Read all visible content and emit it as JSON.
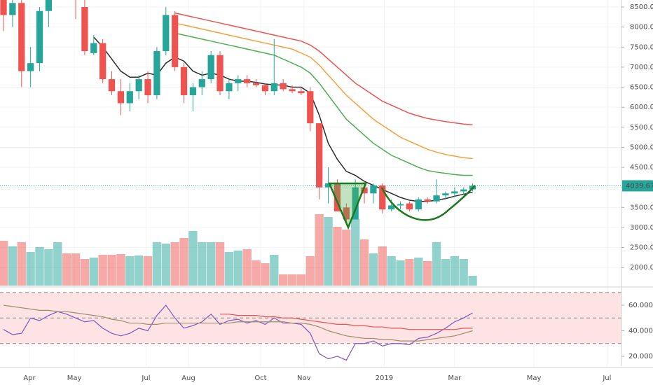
{
  "chart_data": [
    {
      "type": "candlestick",
      "xlim": [
        -0.39,
        68.5
      ],
      "xticks": [
        {
          "value": 2.87,
          "label": "Apr"
        },
        {
          "value": 7.85,
          "label": "May"
        },
        {
          "value": 15.8,
          "label": "Jul"
        },
        {
          "value": 20.5,
          "label": "Aug"
        },
        {
          "value": 28.5,
          "label": "Oct"
        },
        {
          "value": 33.3,
          "label": "Nov"
        },
        {
          "value": 42.2,
          "label": "2019"
        },
        {
          "value": 50.0,
          "label": "Mar"
        },
        {
          "value": 58.8,
          "label": "May"
        },
        {
          "value": 66.9,
          "label": "Jul"
        }
      ],
      "ylim": [
        1550,
        8675
      ],
      "yticks": [
        {
          "value": 2000,
          "label": "2000.00"
        },
        {
          "value": 2500,
          "label": "2500.00"
        },
        {
          "value": 3000,
          "label": "3000.00"
        },
        {
          "value": 3500,
          "label": "3500.00"
        },
        {
          "value": 4000,
          "label": "4000.00"
        },
        {
          "value": 4500,
          "label": "4500.00"
        },
        {
          "value": 5000,
          "label": "5000.00"
        },
        {
          "value": 5500,
          "label": "5500.00"
        },
        {
          "value": 6000,
          "label": "6000.00"
        },
        {
          "value": 6500,
          "label": "6500.00"
        },
        {
          "value": 7000,
          "label": "7000.00"
        },
        {
          "value": 7500,
          "label": "7500.00"
        },
        {
          "value": 8000,
          "label": "8000.00"
        },
        {
          "value": 8500,
          "label": "8500.00"
        }
      ],
      "grid": true,
      "up_color": "#26a69a",
      "down_color": "#ef5350",
      "last_price": 4039.67,
      "open": [
        8800,
        8300,
        8600,
        6900,
        7100,
        8400,
        9200,
        9500,
        9100,
        8500,
        7350,
        7600,
        6700,
        6400,
        6100,
        6400,
        6700,
        6300,
        7400,
        8300,
        7000,
        6300,
        6500,
        6700,
        7300,
        6400,
        6600,
        6700,
        6600,
        6550,
        6400,
        6600,
        6450,
        6400,
        6400,
        5600,
        4000,
        4100,
        3500,
        3200,
        4000,
        3850,
        4050,
        3450,
        3550,
        3600,
        3450,
        3700,
        3650,
        3800,
        3850,
        3900,
        3950
      ],
      "high": [
        9100,
        8700,
        8800,
        7500,
        8500,
        9300,
        9800,
        9900,
        9400,
        8700,
        7800,
        7700,
        6900,
        6700,
        6600,
        6800,
        6900,
        7500,
        8500,
        8400,
        7100,
        6600,
        6900,
        7400,
        7400,
        6700,
        6800,
        6800,
        6700,
        6600,
        7700,
        6700,
        6550,
        6500,
        6500,
        5600,
        4500,
        4200,
        3600,
        4200,
        4150,
        4100,
        4100,
        3700,
        3650,
        3650,
        3750,
        3750,
        4200,
        3900,
        4000,
        4000,
        4100
      ],
      "low": [
        7900,
        8000,
        6500,
        6500,
        6900,
        8000,
        9000,
        8800,
        8200,
        7300,
        7300,
        6600,
        6300,
        5800,
        5900,
        6200,
        6100,
        6200,
        7300,
        6900,
        6100,
        5900,
        6300,
        6600,
        6300,
        6200,
        6400,
        6500,
        6500,
        6300,
        6300,
        6400,
        6350,
        6300,
        5400,
        3700,
        3600,
        3400,
        3150,
        3200,
        3600,
        3600,
        3350,
        3400,
        3450,
        3400,
        3400,
        3600,
        3600,
        3700,
        3750,
        3800,
        3900
      ],
      "close": [
        8300,
        8600,
        6900,
        7100,
        8400,
        9200,
        9500,
        9100,
        8700,
        7400,
        7600,
        6700,
        6400,
        6100,
        6400,
        6700,
        6300,
        7400,
        8300,
        7000,
        6300,
        6500,
        6700,
        7300,
        6400,
        6600,
        6700,
        6600,
        6550,
        6400,
        6600,
        6450,
        6400,
        6350,
        5600,
        4000,
        4100,
        3400,
        3200,
        4000,
        3850,
        4050,
        3450,
        3550,
        3580,
        3450,
        3700,
        3650,
        3800,
        3850,
        3900,
        3950,
        4039.67
      ],
      "volume": [
        64,
        56,
        62,
        48,
        55,
        52,
        62,
        46,
        46,
        38,
        40,
        44,
        44,
        45,
        42,
        43,
        42,
        62,
        60,
        62,
        68,
        78,
        62,
        62,
        62,
        48,
        50,
        52,
        36,
        32,
        44,
        16,
        16,
        16,
        42,
        102,
        98,
        84,
        80,
        95,
        66,
        46,
        56,
        42,
        36,
        38,
        40,
        35,
        62,
        38,
        42,
        38,
        14
      ],
      "moving_averages": [
        {
          "color": "#ef5350",
          "values": [
            null,
            null,
            null,
            null,
            null,
            null,
            null,
            null,
            null,
            null,
            null,
            null,
            null,
            null,
            null,
            null,
            null,
            null,
            null,
            8350,
            8300,
            8250,
            8200,
            8150,
            8100,
            8050,
            8000,
            7950,
            7900,
            7850,
            7800,
            7750,
            7700,
            7650,
            7550,
            7400,
            7200,
            7000,
            6800,
            6600,
            6450,
            6300,
            6150,
            6050,
            5950,
            5850,
            5780,
            5720,
            5680,
            5640,
            5610,
            5580,
            5560
          ]
        },
        {
          "color": "#f7a03c",
          "values": [
            null,
            null,
            null,
            null,
            null,
            null,
            null,
            null,
            null,
            null,
            null,
            null,
            null,
            null,
            null,
            null,
            null,
            null,
            null,
            8100,
            8050,
            8000,
            7950,
            7900,
            7850,
            7800,
            7750,
            7700,
            7650,
            7600,
            7550,
            7500,
            7450,
            7350,
            7250,
            7050,
            6800,
            6550,
            6300,
            6100,
            5900,
            5700,
            5550,
            5400,
            5250,
            5150,
            5050,
            4950,
            4880,
            4820,
            4780,
            4740,
            4720
          ]
        },
        {
          "color": "#4caf50",
          "values": [
            null,
            null,
            null,
            null,
            null,
            null,
            null,
            null,
            null,
            null,
            null,
            null,
            null,
            null,
            null,
            null,
            null,
            null,
            null,
            7850,
            7800,
            7750,
            7700,
            7650,
            7600,
            7550,
            7500,
            7450,
            7400,
            7350,
            7300,
            7200,
            7100,
            7000,
            6850,
            6600,
            6300,
            6000,
            5700,
            5500,
            5300,
            5100,
            4950,
            4800,
            4700,
            4600,
            4500,
            4420,
            4380,
            4350,
            4320,
            4300,
            4300
          ]
        },
        {
          "color": "#2b2b2b",
          "values": [
            null,
            null,
            null,
            null,
            null,
            null,
            null,
            null,
            null,
            null,
            7750,
            7500,
            7200,
            6900,
            6750,
            6750,
            6850,
            6800,
            7100,
            7250,
            7150,
            6900,
            6800,
            6850,
            6800,
            6700,
            6650,
            6650,
            6620,
            6580,
            6560,
            6550,
            6500,
            6500,
            6350,
            5800,
            5100,
            4700,
            4400,
            4300,
            4150,
            4050,
            3950,
            3850,
            3750,
            3680,
            3650,
            3650,
            3680,
            3720,
            3780,
            3830,
            3880
          ]
        }
      ]
    },
    {
      "type": "line",
      "ylim": [
        12.3,
        73.2
      ],
      "yticks": [
        {
          "value": 20,
          "label": "20.0000"
        },
        {
          "value": 40,
          "label": "40.0000"
        },
        {
          "value": 60,
          "label": "60.0000"
        }
      ],
      "levels": [
        70,
        50,
        30
      ],
      "band_color": "#fde3e3",
      "series": [
        {
          "color": "#7e57c2",
          "values": [
            41,
            37,
            38,
            50,
            48,
            52,
            55,
            53,
            50,
            47,
            48,
            42,
            38,
            36,
            38,
            42,
            40,
            52,
            60,
            50,
            42,
            44,
            47,
            53,
            45,
            48,
            49,
            46,
            48,
            45,
            50,
            46,
            46,
            45,
            38,
            22,
            18,
            20,
            17,
            30,
            30,
            32,
            28,
            30,
            30,
            29,
            34,
            35,
            38,
            42,
            47,
            50,
            54
          ]
        },
        {
          "color": "#a08c6a",
          "values": [
            60,
            59,
            58,
            57,
            56,
            56,
            55,
            55,
            54,
            53,
            52,
            51,
            49,
            48,
            46,
            46,
            45,
            45,
            46,
            46,
            46,
            46,
            46,
            46,
            46,
            46,
            47,
            47,
            47,
            47,
            47,
            47,
            46,
            46,
            45,
            43,
            40,
            38,
            36,
            35,
            34,
            34,
            33,
            33,
            32,
            32,
            32,
            33,
            34,
            35,
            36,
            38,
            40
          ]
        },
        {
          "color": "#ef5350",
          "values": [
            null,
            null,
            null,
            null,
            null,
            null,
            null,
            null,
            null,
            null,
            null,
            null,
            null,
            null,
            null,
            null,
            null,
            null,
            null,
            null,
            null,
            null,
            null,
            null,
            53,
            53,
            52,
            52,
            52,
            51,
            51,
            50,
            50,
            49,
            48,
            47,
            46,
            45,
            45,
            44,
            44,
            43,
            43,
            42,
            42,
            41,
            41,
            41,
            41,
            41,
            41,
            42,
            42
          ]
        }
      ]
    }
  ]
}
